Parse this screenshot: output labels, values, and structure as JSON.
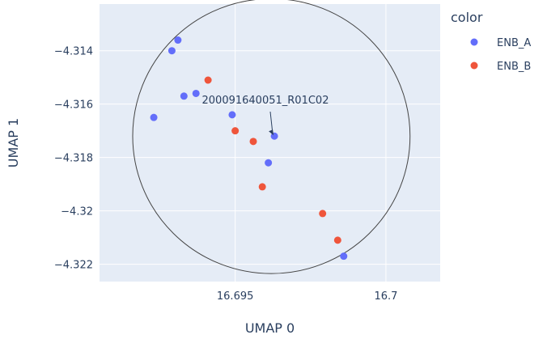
{
  "chart_data": {
    "type": "scatter",
    "xlabel": "UMAP 0",
    "ylabel": "UMAP 1",
    "xlim": [
      16.6905,
      16.7018
    ],
    "ylim": [
      -4.32265,
      -4.31225
    ],
    "xticks": [
      16.695,
      16.7
    ],
    "xtick_labels": [
      "16.695",
      "16.7"
    ],
    "yticks": [
      -4.314,
      -4.316,
      -4.318,
      -4.32,
      -4.322
    ],
    "ytick_labels": [
      "−4.314",
      "−4.316",
      "−4.318",
      "−4.32",
      "−4.322"
    ],
    "grid": true,
    "legend": {
      "title": "color",
      "placement": "right"
    },
    "series": [
      {
        "name": "ENB_A",
        "color": "#636efa",
        "points": [
          [
            16.6923,
            -4.3165
          ],
          [
            16.6929,
            -4.314
          ],
          [
            16.6931,
            -4.3136
          ],
          [
            16.6933,
            -4.3157
          ],
          [
            16.6937,
            -4.3156
          ],
          [
            16.6949,
            -4.3164
          ],
          [
            16.6963,
            -4.3172
          ],
          [
            16.6961,
            -4.3182
          ],
          [
            16.6986,
            -4.3217
          ]
        ]
      },
      {
        "name": "ENB_B",
        "color": "#ef553b",
        "points": [
          [
            16.6941,
            -4.3151
          ],
          [
            16.695,
            -4.317
          ],
          [
            16.6956,
            -4.3174
          ],
          [
            16.6959,
            -4.3191
          ],
          [
            16.6979,
            -4.3201
          ],
          [
            16.6984,
            -4.3211
          ]
        ]
      }
    ],
    "annotations": [
      {
        "text": "200091640051_R01C02",
        "x": 16.6963,
        "y": -4.3172,
        "arrow": true
      }
    ],
    "shapes": [
      {
        "type": "circle",
        "center": [
          16.6962,
          -4.3172
        ],
        "radius_x": 0.0046,
        "radius_y": 0.00515,
        "line_color": "#444444"
      }
    ]
  }
}
